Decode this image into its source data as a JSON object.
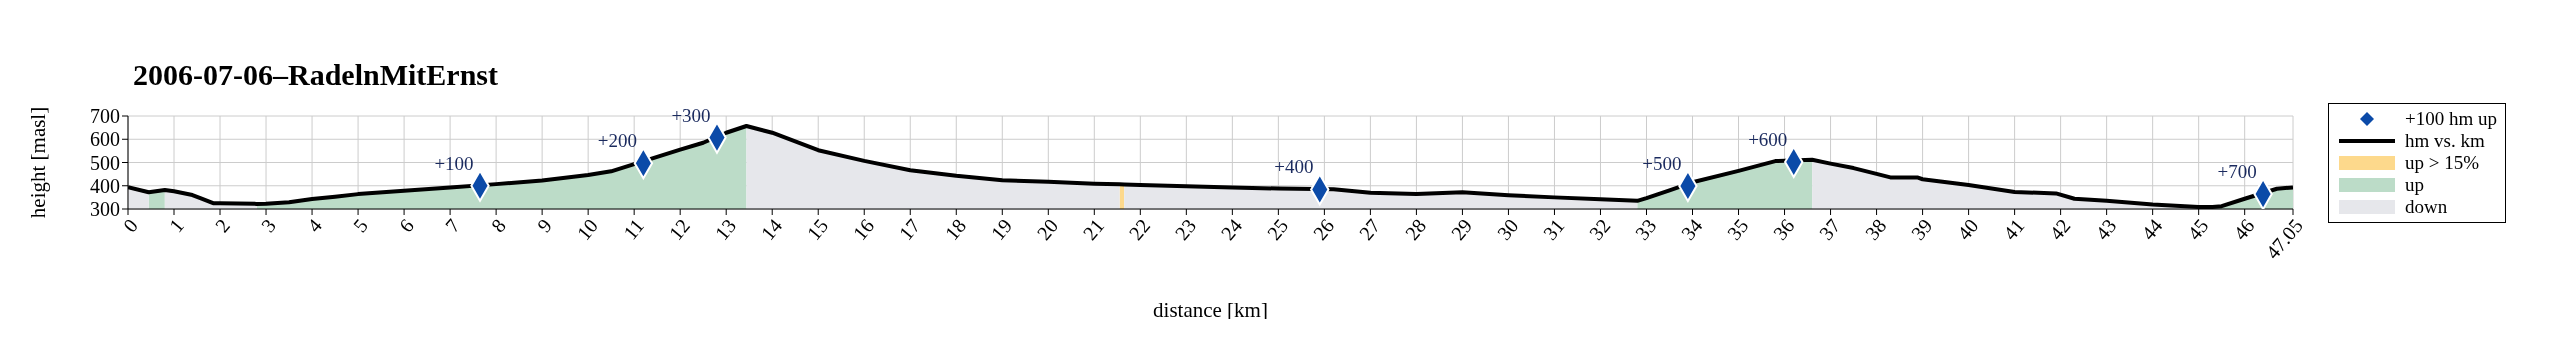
{
  "chart_data": {
    "type": "line",
    "title": "2006-07-06–RadelnMitErnst",
    "xlabel": "distance [km]",
    "ylabel": "height [masl]",
    "xlim": [
      0,
      47.05
    ],
    "xticks": [
      0,
      1,
      2,
      3,
      4,
      5,
      6,
      7,
      8,
      9,
      10,
      11,
      12,
      13,
      14,
      15,
      16,
      17,
      18,
      19,
      20,
      21,
      22,
      23,
      24,
      25,
      26,
      27,
      28,
      29,
      30,
      31,
      32,
      33,
      34,
      35,
      36,
      37,
      38,
      39,
      40,
      41,
      42,
      43,
      44,
      45,
      46,
      47.05
    ],
    "ylim": [
      300,
      700
    ],
    "yticks": [
      300,
      400,
      500,
      600,
      700
    ],
    "grid": true,
    "legend": "right",
    "series": [
      {
        "name": "+100 hm up",
        "type": "scatter",
        "marker": "diamond",
        "color": "#0b4aa8",
        "x": [
          7.65,
          11.2,
          12.8,
          25.9,
          33.9,
          36.2,
          46.4
        ],
        "values": [
          400,
          497,
          607,
          384,
          399,
          502,
          364
        ]
      },
      {
        "name": "hm vs. km",
        "marker": "none",
        "line_style": "solid",
        "color": "#000000",
        "x": [
          0,
          0.45,
          0.8,
          1,
          1.4,
          1.6,
          1.85,
          2,
          2.8,
          3,
          3.5,
          4,
          4.5,
          5,
          6,
          7,
          8,
          9,
          10,
          10.5,
          11.5,
          12,
          12.5,
          13,
          13.44,
          14,
          15,
          16,
          17,
          18,
          19,
          20,
          21,
          21.55,
          21.65,
          22,
          23,
          24,
          25,
          26.2,
          27,
          28,
          29,
          30,
          31,
          32,
          32.8,
          33,
          33.5,
          34,
          35,
          35.8,
          36.6,
          37,
          37.5,
          38,
          38.3,
          38.9,
          39,
          40,
          41,
          41.9,
          42.3,
          43,
          44,
          45,
          45.3,
          45.5,
          46,
          46.7,
          47.05
        ],
        "values": [
          394,
          372,
          382,
          376,
          360,
          345,
          325,
          325,
          322,
          323,
          329,
          343,
          353,
          364,
          378,
          392,
          407,
          423,
          446,
          462,
          524,
          555,
          585,
          628,
          657,
          628,
          553,
          507,
          467,
          443,
          424,
          417,
          409,
          406,
          405,
          403,
          398,
          392,
          388,
          385,
          370,
          364,
          372,
          359,
          350,
          342,
          335,
          347,
          380,
          415,
          464,
          506,
          512,
          495,
          476,
          451,
          436,
          435,
          428,
          403,
          373,
          367,
          344,
          335,
          319,
          309,
          309,
          312,
          344,
          387,
          393
        ]
      },
      {
        "name": "up > 15%",
        "type": "area",
        "color": "#fdd98c",
        "x": [
          21.55,
          21.65
        ],
        "values": [
          406,
          405
        ]
      },
      {
        "name": "up",
        "type": "area",
        "color": "#bcdcc8",
        "x": [
          0.45,
          0.8,
          1,
          2.8,
          3,
          3.5,
          4,
          4.5,
          5,
          6,
          7,
          8,
          9,
          10,
          10.5,
          11.5,
          12,
          12.5,
          13,
          13.44,
          13.6,
          32.8,
          33,
          33.5,
          34,
          35,
          35.8,
          36.6,
          36.8,
          45.3,
          45.5,
          46,
          46.7,
          47.05
        ],
        "values": [
          372,
          382,
          null,
          322,
          323,
          329,
          343,
          353,
          364,
          378,
          392,
          407,
          423,
          446,
          462,
          524,
          555,
          585,
          628,
          657,
          null,
          335,
          347,
          380,
          415,
          464,
          506,
          512,
          null,
          309,
          312,
          344,
          387,
          393
        ]
      },
      {
        "name": "down",
        "type": "area",
        "color": "#e6e7eb",
        "x": [
          0,
          0.45,
          0.6,
          0.8,
          1,
          1.4,
          1.6,
          1.85,
          2,
          2.8,
          3,
          13.44,
          14,
          15,
          16,
          17,
          18,
          19,
          20,
          21,
          21.55,
          21.6,
          21.65,
          22,
          23,
          24,
          25,
          26,
          27,
          28,
          29,
          30,
          31,
          32,
          32.8,
          33,
          36.6,
          37,
          37.5,
          38,
          38.3,
          38.9,
          39,
          40,
          41,
          41.9,
          42.3,
          43,
          44,
          45,
          45.3
        ],
        "values": [
          394,
          372,
          null,
          382,
          376,
          360,
          345,
          325,
          325,
          322,
          null,
          657,
          628,
          553,
          507,
          467,
          443,
          424,
          417,
          409,
          406,
          null,
          405,
          403,
          398,
          392,
          388,
          385,
          370,
          364,
          372,
          359,
          350,
          342,
          335,
          null,
          512,
          495,
          476,
          451,
          436,
          435,
          428,
          403,
          373,
          367,
          344,
          335,
          319,
          309,
          309
        ]
      }
    ],
    "annotations": [
      {
        "text": "+100",
        "x": 7.65,
        "y": 400
      },
      {
        "text": "+200",
        "x": 11.2,
        "y": 497
      },
      {
        "text": "+300",
        "x": 12.8,
        "y": 607
      },
      {
        "text": "+400",
        "x": 25.9,
        "y": 384
      },
      {
        "text": "+500",
        "x": 33.9,
        "y": 399
      },
      {
        "text": "+600",
        "x": 36.2,
        "y": 502
      },
      {
        "text": "+700",
        "x": 46.4,
        "y": 364
      }
    ]
  }
}
